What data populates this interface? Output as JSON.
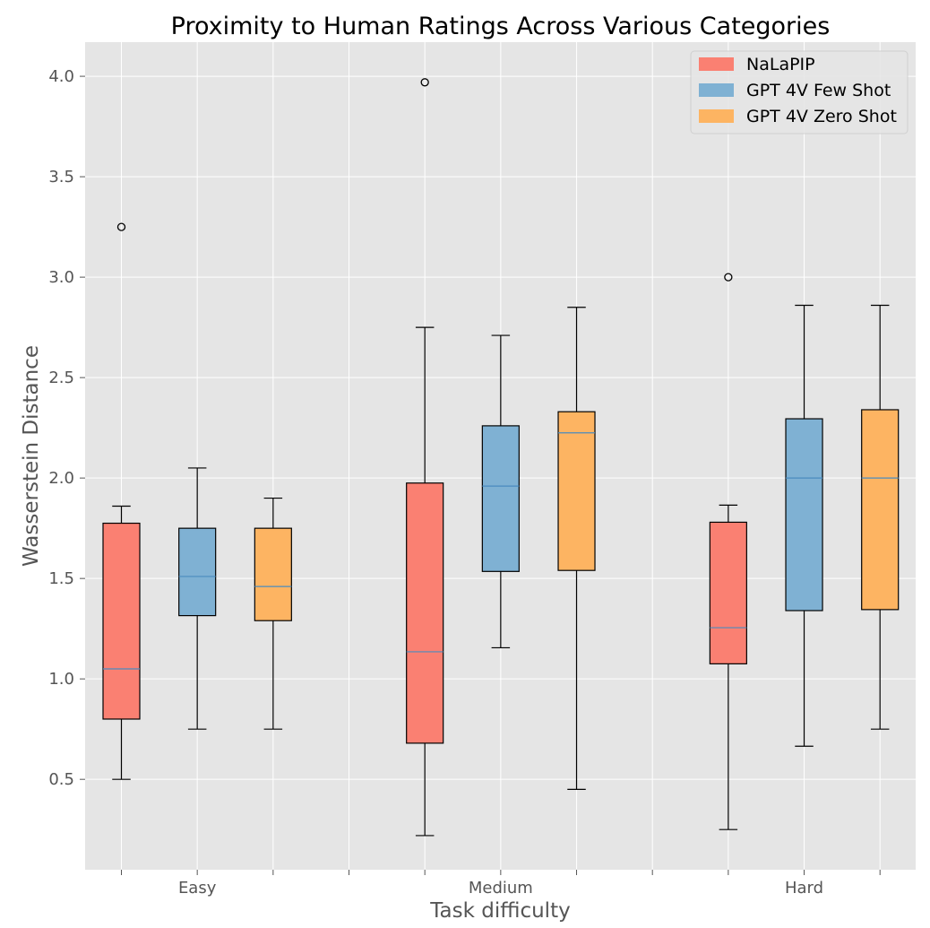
{
  "chart_data": {
    "type": "box",
    "title": "Proximity to Human Ratings Across Various Categories",
    "xlabel": "Task difficulty",
    "ylabel": "Wasserstein Distance",
    "categories": [
      "Easy",
      "Medium",
      "Hard"
    ],
    "yticks": [
      "0.5",
      "1.0",
      "1.5",
      "2.0",
      "2.5",
      "3.0",
      "3.5",
      "4.0"
    ],
    "ylim": [
      0.05,
      4.17
    ],
    "grid": true,
    "legend_position": "top-right",
    "series": [
      {
        "name": "NaLaPIP",
        "color": "#FA8072",
        "boxes": [
          {
            "whisker_low": 0.5,
            "q1": 0.8,
            "median": 1.05,
            "q3": 1.775,
            "whisker_high": 1.86,
            "outliers": [
              3.25
            ]
          },
          {
            "whisker_low": 0.22,
            "q1": 0.68,
            "median": 1.135,
            "q3": 1.975,
            "whisker_high": 2.75,
            "outliers": [
              3.97
            ]
          },
          {
            "whisker_low": 0.25,
            "q1": 1.075,
            "median": 1.255,
            "q3": 1.78,
            "whisker_high": 1.865,
            "outliers": [
              3.0
            ]
          }
        ]
      },
      {
        "name": "GPT 4V Few Shot",
        "color": "#7FB1D3",
        "boxes": [
          {
            "whisker_low": 0.75,
            "q1": 1.315,
            "median": 1.51,
            "q3": 1.75,
            "whisker_high": 2.05,
            "outliers": []
          },
          {
            "whisker_low": 1.155,
            "q1": 1.535,
            "median": 1.96,
            "q3": 2.26,
            "whisker_high": 2.71,
            "outliers": []
          },
          {
            "whisker_low": 0.665,
            "q1": 1.34,
            "median": 2.0,
            "q3": 2.295,
            "whisker_high": 2.86,
            "outliers": []
          }
        ]
      },
      {
        "name": "GPT 4V Zero Shot",
        "color": "#FDB462",
        "boxes": [
          {
            "whisker_low": 0.75,
            "q1": 1.29,
            "median": 1.46,
            "q3": 1.75,
            "whisker_high": 1.9,
            "outliers": []
          },
          {
            "whisker_low": 0.45,
            "q1": 1.54,
            "median": 2.225,
            "q3": 2.33,
            "whisker_high": 2.85,
            "outliers": []
          },
          {
            "whisker_low": 0.75,
            "q1": 1.345,
            "median": 2.0,
            "q3": 2.34,
            "whisker_high": 2.86,
            "outliers": []
          }
        ]
      }
    ],
    "colors": {
      "plot_background": "#E5E5E5",
      "grid": "#FFFFFF",
      "median_line": "#4A8BBF"
    }
  }
}
